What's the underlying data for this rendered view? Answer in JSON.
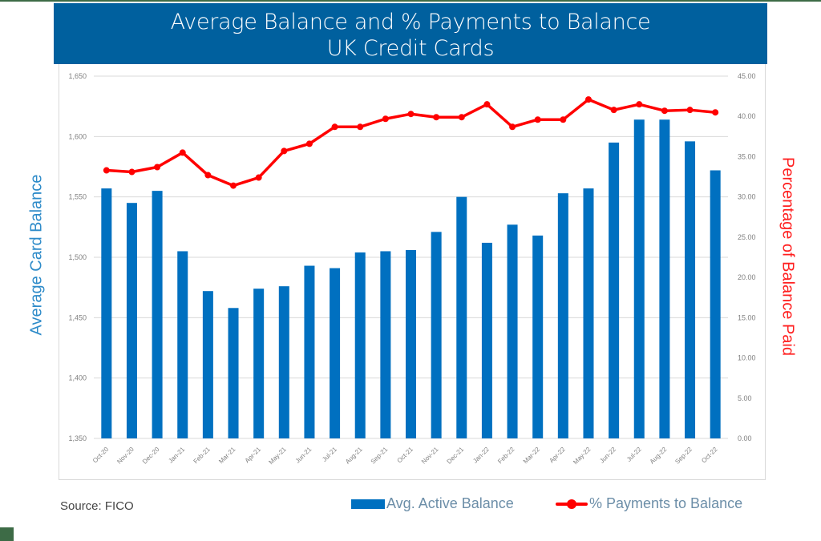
{
  "header": {
    "title_line1": "Average Balance and % Payments to Balance",
    "title_line2": "UK Credit Cards"
  },
  "axes": {
    "left_label": "Average Card Balance",
    "right_label": "Percentage of Balance Paid",
    "left_ticks": [
      "1,650",
      "1,600",
      "1,550",
      "1,500",
      "1,450",
      "1,400",
      "1,350"
    ],
    "right_ticks": [
      "45.00",
      "40.00",
      "35.00",
      "30.00",
      "25.00",
      "20.00",
      "15.00",
      "10.00",
      "5.00",
      "0.00"
    ]
  },
  "footer": {
    "source": "Source: FICO",
    "legend_bar": "Avg. Active Balance",
    "legend_line": "% Payments to Balance"
  },
  "colors": {
    "banner": "#00609e",
    "bar": "#0070c0",
    "line": "#ff0000",
    "left_axis_label": "#2e8bc9",
    "right_axis_label": "#ff2020"
  },
  "chart_data": {
    "type": "bar",
    "title": "Average Balance and % Payments to Balance UK Credit Cards",
    "xlabel": "",
    "ylabel": "Average Card Balance",
    "y2label": "Percentage of Balance Paid",
    "ylim": [
      1350,
      1650
    ],
    "y2lim": [
      0,
      45
    ],
    "grid": true,
    "legend_position": "bottom-right",
    "categories": [
      "Oct-20",
      "Nov-20",
      "Dec-20",
      "Jan-21",
      "Feb-21",
      "Mar-21",
      "Apr-21",
      "May-21",
      "Jun-21",
      "Jul-21",
      "Aug-21",
      "Sep-21",
      "Oct-21",
      "Nov-21",
      "Dec-21",
      "Jan-22",
      "Feb-22",
      "Mar-22",
      "Apr-22",
      "May-22",
      "Jun-22",
      "Jul-22",
      "Aug-22",
      "Sep-22",
      "Oct-22"
    ],
    "series": [
      {
        "name": "Avg. Active Balance",
        "type": "bar",
        "axis": "left",
        "values": [
          1557,
          1545,
          1555,
          1505,
          1472,
          1458,
          1474,
          1476,
          1493,
          1491,
          1504,
          1505,
          1506,
          1521,
          1550,
          1512,
          1527,
          1518,
          1553,
          1557,
          1595,
          1614,
          1614,
          1596,
          1572
        ]
      },
      {
        "name": "% Payments to Balance",
        "type": "line",
        "axis": "right",
        "values": [
          33.3,
          33.1,
          33.7,
          35.5,
          32.7,
          31.4,
          32.4,
          35.7,
          36.6,
          38.7,
          38.7,
          39.7,
          40.3,
          39.9,
          39.9,
          41.5,
          38.7,
          39.6,
          39.6,
          42.1,
          40.8,
          41.5,
          40.7,
          40.8,
          40.5
        ]
      }
    ]
  }
}
